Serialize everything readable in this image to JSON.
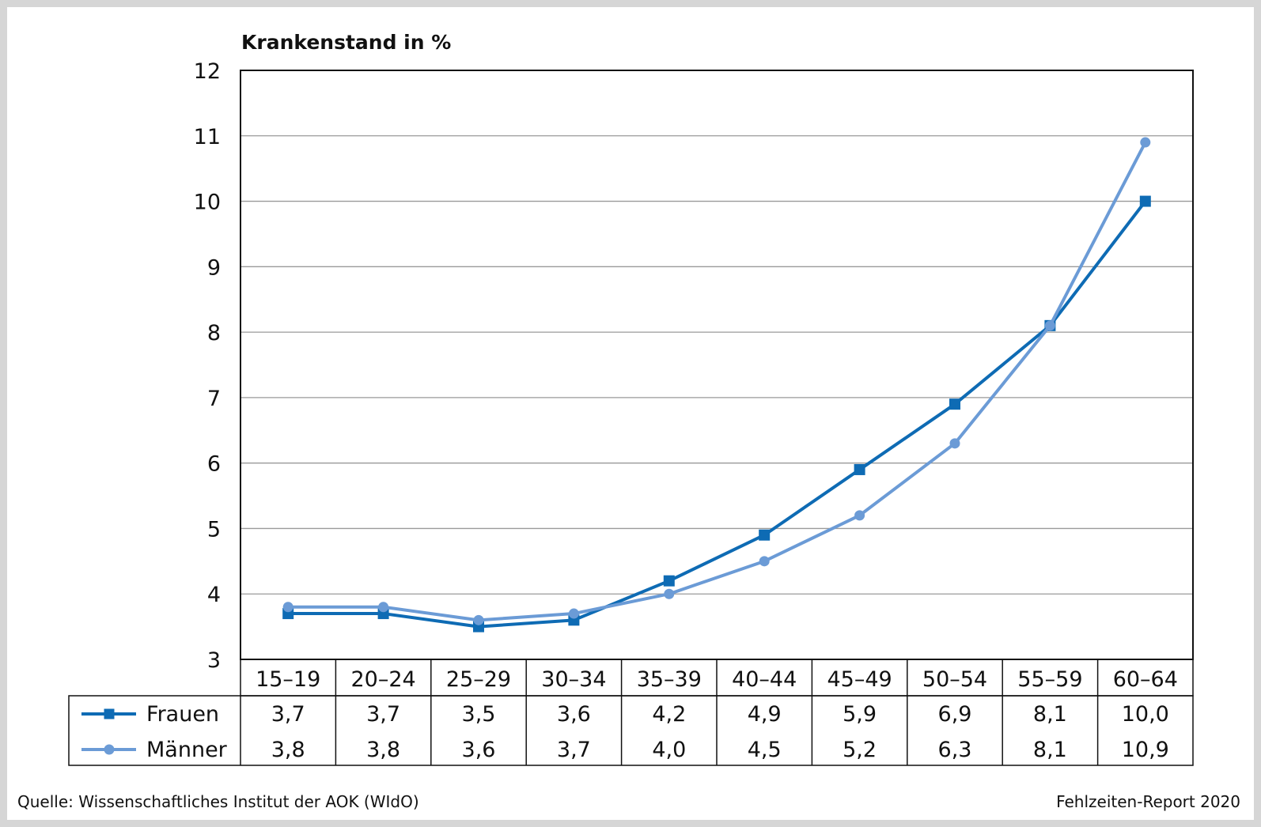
{
  "chart_data": {
    "type": "line",
    "title": "Krankenstand in %",
    "ylim": [
      3,
      12
    ],
    "yticks": [
      "3",
      "4",
      "5",
      "6",
      "7",
      "8",
      "9",
      "10",
      "11",
      "12"
    ],
    "categories": [
      "15–19",
      "20–24",
      "25–29",
      "30–34",
      "35–39",
      "40–44",
      "45–49",
      "50–54",
      "55–59",
      "60–64"
    ],
    "grid": true,
    "legend_placement": "table-below",
    "series": [
      {
        "name": "Frauen",
        "marker": "square",
        "color": "#0e6bb4",
        "values": [
          3.7,
          3.7,
          3.5,
          3.6,
          4.2,
          4.9,
          5.9,
          6.9,
          8.1,
          10.0
        ],
        "labels": [
          "3,7",
          "3,7",
          "3,5",
          "3,6",
          "4,2",
          "4,9",
          "5,9",
          "6,9",
          "8,1",
          "10,0"
        ]
      },
      {
        "name": "Männer",
        "marker": "circle",
        "color": "#6b9bd6",
        "values": [
          3.8,
          3.8,
          3.6,
          3.7,
          4.0,
          4.5,
          5.2,
          6.3,
          8.1,
          10.9
        ],
        "labels": [
          "3,8",
          "3,8",
          "3,6",
          "3,7",
          "4,0",
          "4,5",
          "5,2",
          "6,3",
          "8,1",
          "10,9"
        ]
      }
    ]
  },
  "footer": {
    "source": "Quelle: Wissenschaftliches Institut der AOK (WIdO)",
    "report": "Fehlzeiten-Report 2020"
  }
}
